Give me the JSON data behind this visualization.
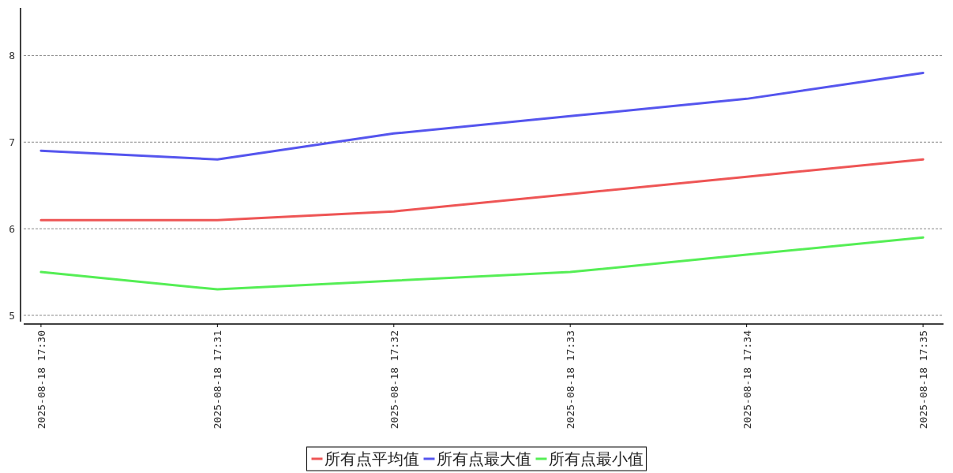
{
  "chart_data": {
    "type": "line",
    "categories": [
      "2025-08-18 17:30",
      "2025-08-18 17:31",
      "2025-08-18 17:32",
      "2025-08-18 17:33",
      "2025-08-18 17:34",
      "2025-08-18 17:35"
    ],
    "series": [
      {
        "name": "所有点平均值",
        "color": "#ee5555",
        "values": [
          6.1,
          6.1,
          6.2,
          6.4,
          6.6,
          6.8
        ]
      },
      {
        "name": "所有点最大值",
        "color": "#5555ee",
        "values": [
          6.9,
          6.8,
          7.1,
          7.3,
          7.5,
          7.8
        ]
      },
      {
        "name": "所有点最小值",
        "color": "#55ee55",
        "values": [
          5.5,
          5.3,
          5.4,
          5.5,
          5.7,
          5.9
        ]
      }
    ],
    "ylim": [
      4.9,
      8.55
    ],
    "yticks": [
      5,
      6,
      7,
      8
    ],
    "grid": "y",
    "legend": "bottom",
    "line_style": "solid"
  }
}
